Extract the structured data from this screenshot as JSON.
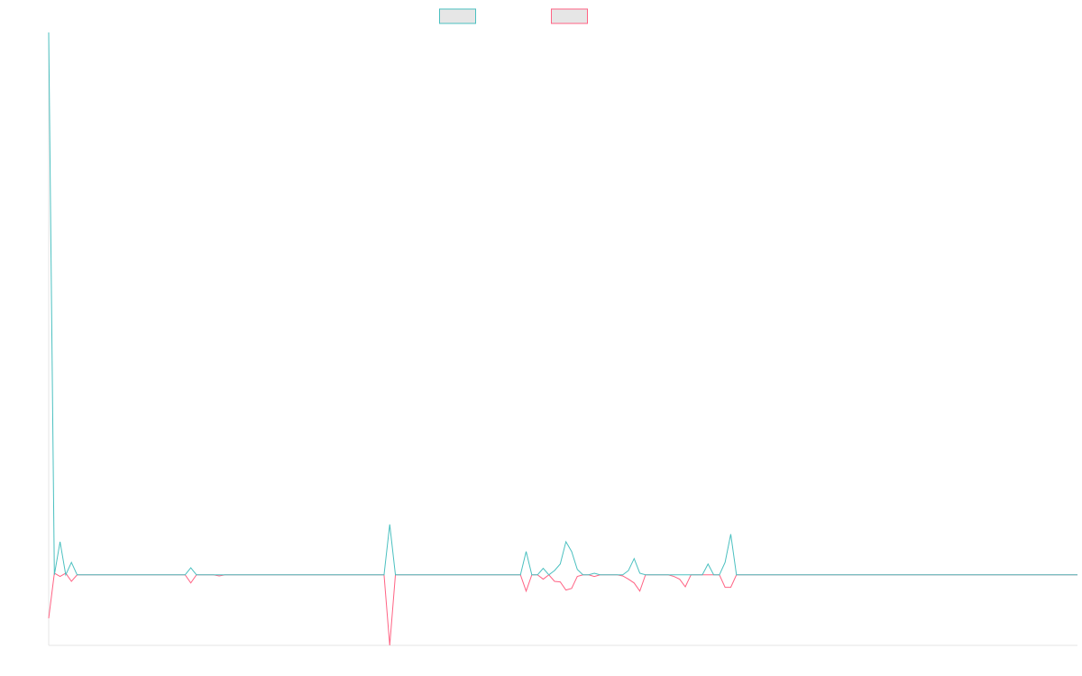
{
  "chart_data": {
    "type": "line",
    "categories": [
      null,
      null,
      null,
      null,
      null,
      null,
      null,
      null,
      null,
      null,
      null,
      null,
      null,
      null,
      null,
      null,
      null,
      null,
      null,
      null,
      null,
      null,
      null,
      null,
      null,
      null,
      null,
      null,
      null,
      null,
      null,
      null,
      null,
      null,
      null,
      null,
      null,
      null,
      null,
      null,
      null,
      null,
      null,
      null,
      null,
      null,
      null,
      null,
      null,
      null,
      null,
      null,
      null,
      null,
      null,
      null,
      null,
      null,
      null,
      null,
      null,
      null,
      null,
      null,
      null,
      null,
      null,
      null,
      null,
      null,
      null,
      null,
      null,
      null,
      null,
      null,
      null,
      null,
      null,
      null,
      null,
      null,
      null,
      null,
      null,
      null,
      null,
      null,
      null,
      null,
      null,
      null,
      null,
      null,
      null,
      null,
      null,
      null,
      null,
      null,
      null,
      null,
      null,
      null,
      null,
      null,
      null,
      null,
      null,
      null,
      null,
      null,
      null,
      null,
      null,
      null,
      null,
      null,
      null,
      null,
      null,
      null,
      null,
      null,
      null,
      null,
      null,
      null,
      null,
      null,
      null,
      null,
      null,
      null,
      null,
      null,
      null,
      null,
      null,
      null,
      null,
      null,
      null,
      null,
      null,
      null,
      null,
      null,
      null,
      null,
      null,
      null,
      null,
      null,
      null,
      null,
      null,
      null,
      null,
      null,
      null,
      null,
      null,
      null,
      null,
      null,
      null,
      null,
      null,
      null,
      null,
      null,
      null,
      null,
      null,
      null,
      null,
      null,
      null,
      null,
      null,
      null
    ],
    "series": [
      {
        "color": "#4bc0c0",
        "values": [
          100,
          0,
          6.1,
          0,
          2.3,
          0,
          0,
          0,
          0,
          0,
          0,
          0,
          0,
          0,
          0,
          0,
          0,
          0,
          0,
          0,
          0,
          0,
          0,
          0,
          0,
          1.3,
          0,
          0,
          0,
          0,
          0,
          0,
          0,
          0,
          0,
          0,
          0,
          0,
          0,
          0,
          0,
          0,
          0,
          0,
          0,
          0,
          0,
          0,
          0,
          0,
          0,
          0,
          0,
          0,
          0,
          0,
          0,
          0,
          0,
          0,
          9.3,
          0,
          0,
          0,
          0,
          0,
          0,
          0,
          0,
          0,
          0,
          0,
          0,
          0,
          0,
          0,
          0,
          0,
          0,
          0,
          0,
          0,
          0,
          0,
          4.3,
          0,
          0,
          1.2,
          0,
          0.8,
          2,
          6.1,
          4.3,
          1,
          0,
          0,
          0.3,
          0,
          0,
          0,
          0,
          0,
          0.8,
          3,
          0.3,
          0,
          0,
          0,
          0,
          0,
          0,
          0,
          0,
          0,
          0,
          0,
          2,
          0,
          0,
          2.3,
          7.5,
          0,
          0,
          0,
          0,
          0,
          0,
          0,
          0,
          0,
          0,
          0,
          0,
          0,
          0,
          0,
          0,
          0,
          0,
          0,
          0,
          0,
          0,
          0,
          0,
          0,
          0,
          0,
          0,
          0,
          0,
          0,
          0,
          0,
          0,
          0,
          0,
          0,
          0,
          0,
          0,
          0,
          0,
          0,
          0,
          0,
          0,
          0,
          0,
          0,
          0,
          0,
          0,
          0,
          0,
          0,
          0,
          0,
          0,
          0,
          0,
          0
        ]
      },
      {
        "color": "#ff6384",
        "values": [
          -8,
          0.3,
          -0.3,
          0.3,
          -1.2,
          0,
          0,
          0,
          0,
          0,
          0,
          0,
          0,
          0,
          0,
          0,
          0,
          0,
          0,
          0,
          0,
          0,
          0,
          0,
          0,
          -1.5,
          0,
          0,
          0,
          0,
          -0.2,
          0,
          0,
          0,
          0,
          0,
          0,
          0,
          0,
          0,
          0,
          0,
          0,
          0,
          0,
          0,
          0,
          0,
          0,
          0,
          0,
          0,
          0,
          0,
          0,
          0,
          0,
          0,
          0,
          0,
          -13,
          0,
          0,
          0,
          0,
          0,
          0,
          0,
          0,
          0,
          0,
          0,
          0,
          0,
          0,
          0,
          0,
          0,
          0,
          0,
          0,
          0,
          0,
          0,
          -3,
          0,
          0,
          -0.8,
          0,
          -1.2,
          -1.3,
          -2.8,
          -2.5,
          -0.3,
          0,
          0,
          -0.3,
          0,
          0,
          0,
          0,
          -0.2,
          -0.8,
          -1.5,
          -3,
          0,
          0,
          0,
          0,
          0,
          -0.3,
          -0.8,
          -2.2,
          0,
          0,
          0,
          0,
          0,
          0,
          -2.3,
          -2.3,
          0,
          0,
          0,
          0,
          0,
          0,
          0,
          0,
          0,
          0,
          0,
          0,
          0,
          0,
          0,
          0,
          0,
          0,
          0,
          0,
          0,
          0,
          0,
          0,
          0,
          0,
          0,
          0,
          0,
          0,
          0,
          0,
          0,
          0,
          0,
          0,
          0,
          0,
          0,
          0,
          0,
          0,
          0,
          0,
          0,
          0,
          0,
          0,
          0,
          0,
          0,
          0,
          0,
          0,
          0,
          0,
          0,
          0,
          0,
          0,
          0
        ]
      }
    ],
    "ylim": [
      -13,
      100
    ],
    "grid": false,
    "legend": "top"
  }
}
